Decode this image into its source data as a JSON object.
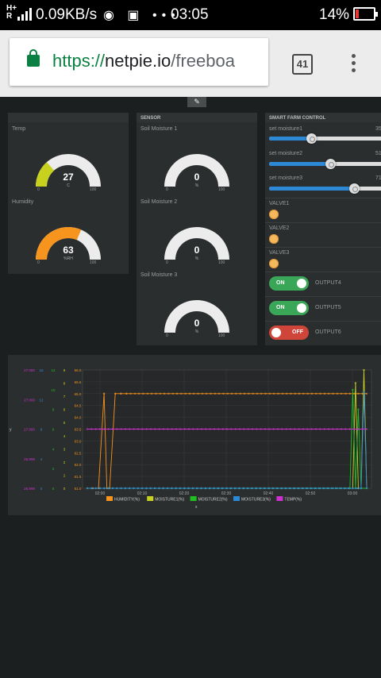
{
  "status_bar": {
    "network_top": "H+",
    "network_bottom": "R",
    "data_speed": "0.09KB/s",
    "notification_icons": "◉ ▣ •••",
    "time": "03:05",
    "battery": "14%"
  },
  "browser": {
    "url_scheme": "https://",
    "url_host": "netpie.io",
    "url_path": "/freeboa",
    "tab_count": "41"
  },
  "dashboard": {
    "edit_icon": "wrench-icon",
    "panel1": {
      "gauges": [
        {
          "title": "Temp",
          "value": 27,
          "unit": "C",
          "min": "0",
          "max": "100",
          "color": "#c8d21e"
        },
        {
          "title": "Humidity",
          "value": 63,
          "unit": "%RH",
          "min": "0",
          "max": "100",
          "color": "#f7941d"
        }
      ]
    },
    "sensor": {
      "header": "SENSOR",
      "gauges": [
        {
          "title": "Soil Moisture 1",
          "value": 0,
          "unit": "%",
          "min": "0",
          "max": "100",
          "color": "#2d89d6"
        },
        {
          "title": "Soil Moisture 2",
          "value": 0,
          "unit": "%",
          "min": "0",
          "max": "100",
          "color": "#2d89d6"
        },
        {
          "title": "Soil Moisture 3",
          "value": 0,
          "unit": "%",
          "min": "0",
          "max": "100",
          "color": "#2d89d6"
        }
      ]
    },
    "control": {
      "header": "SMART FARM CONTROL",
      "sliders": [
        {
          "label": "set moisture1",
          "value": "35",
          "percent": 35
        },
        {
          "label": "set moisture2",
          "value": "51",
          "percent": 51
        },
        {
          "label": "set moisture3",
          "value": "71",
          "percent": 71
        }
      ],
      "valves": [
        {
          "label": "VALVE1"
        },
        {
          "label": "VALVE2"
        },
        {
          "label": "VALVE3"
        }
      ],
      "switches": [
        {
          "state_text": "ON",
          "state": "on",
          "label": "OUTPUT4"
        },
        {
          "state_text": "ON",
          "state": "on",
          "label": "OUTPUT5"
        },
        {
          "state_text": "OFF",
          "state": "off",
          "label": "OUTPUT6"
        }
      ]
    }
  },
  "chart_data": {
    "type": "line",
    "xlabel": "x",
    "ylabel": "y",
    "x_ticks": [
      "02:00",
      "02:10",
      "02:20",
      "02:30",
      "02:40",
      "02:50",
      "03:00"
    ],
    "y_axes": [
      {
        "color": "#cc33cc",
        "ticks": [
          "26.999",
          "26.999",
          "27.000",
          "27.000",
          "27.000"
        ]
      },
      {
        "color": "#2d89d6",
        "ticks": [
          "0",
          "4",
          "8",
          "12",
          "16"
        ]
      },
      {
        "color": "#1fbf1f",
        "ticks": [
          "0",
          "2",
          "4",
          "6",
          "8",
          "10",
          "12"
        ]
      },
      {
        "color": "#c8d21e",
        "ticks": [
          "0",
          "1",
          "2",
          "3",
          "4",
          "5",
          "6",
          "7",
          "8",
          "9"
        ]
      },
      {
        "color": "#f7941d",
        "ticks": [
          "61.0",
          "61.5",
          "62.0",
          "62.5",
          "63.0",
          "63.5",
          "64.0",
          "64.5",
          "65.0",
          "65.5",
          "66.0"
        ]
      }
    ],
    "series": [
      {
        "name": "HUMIDITY(%)",
        "color": "#f7941d",
        "x": [
          0,
          0.02,
          0.04,
          0.06,
          0.07,
          0.08,
          0.1,
          0.12,
          0.14,
          1.0
        ],
        "y": [
          61.0,
          61.0,
          61.0,
          65.0,
          61.0,
          61.0,
          65.0,
          65.0,
          65.0,
          65.0
        ]
      },
      {
        "name": "MOISTURE1(%)",
        "color": "#c8d21e",
        "x": [
          0,
          0.95,
          0.96,
          0.97,
          0.98,
          0.99,
          1.0
        ],
        "y": [
          0,
          0,
          8,
          0,
          0,
          9,
          0
        ]
      },
      {
        "name": "MOISTURE2(%)",
        "color": "#1fbf1f",
        "x": [
          0,
          0.94,
          0.95,
          0.96,
          0.97,
          0.98,
          1.0
        ],
        "y": [
          0,
          0,
          10,
          0,
          8,
          0,
          0
        ]
      },
      {
        "name": "MOISTURE3(%)",
        "color": "#2d89d6",
        "x": [
          0,
          0.98,
          0.99,
          1.0
        ],
        "y": [
          0,
          0,
          13,
          0
        ]
      },
      {
        "name": "TEMP(%)",
        "color": "#cc33cc",
        "x": [
          0,
          1.0
        ],
        "y": [
          27.0,
          27.0
        ]
      }
    ],
    "legend_position": "bottom",
    "grid": true
  }
}
